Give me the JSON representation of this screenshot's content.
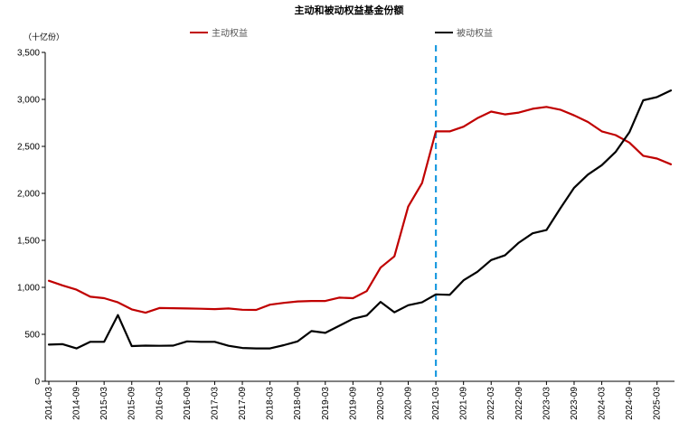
{
  "chart_data": {
    "type": "line",
    "title": "主动和被动权益基金份额",
    "ylabel": "（十亿份）",
    "ylim": [
      0,
      3500
    ],
    "yticks": [
      "0",
      "500",
      "1,000",
      "1,500",
      "2,000",
      "2,500",
      "3,000",
      "3,500"
    ],
    "ytick_values": [
      0,
      500,
      1000,
      1500,
      2000,
      2500,
      3000,
      3500
    ],
    "xtick_labels": [
      "2014-03",
      "2014-09",
      "2015-03",
      "2015-09",
      "2016-03",
      "2016-09",
      "2017-03",
      "2017-09",
      "2018-03",
      "2018-09",
      "2019-03",
      "2019-09",
      "2020-03",
      "2020-09",
      "2021-03",
      "2021-09",
      "2022-03",
      "2022-09",
      "2023-03",
      "2023-09",
      "2024-03",
      "2024-09",
      "2025-03"
    ],
    "x": [
      "2014-03",
      "2014-06",
      "2014-09",
      "2014-12",
      "2015-03",
      "2015-06",
      "2015-09",
      "2015-12",
      "2016-03",
      "2016-06",
      "2016-09",
      "2016-12",
      "2017-03",
      "2017-06",
      "2017-09",
      "2017-12",
      "2018-03",
      "2018-06",
      "2018-09",
      "2018-12",
      "2019-03",
      "2019-06",
      "2019-09",
      "2019-12",
      "2020-03",
      "2020-06",
      "2020-09",
      "2020-12",
      "2021-03",
      "2021-06",
      "2021-09",
      "2021-12",
      "2022-03",
      "2022-06",
      "2022-09",
      "2022-12",
      "2023-03",
      "2023-06",
      "2023-09",
      "2023-12",
      "2024-03",
      "2024-06",
      "2024-09",
      "2024-12",
      "2025-03",
      "2025-06"
    ],
    "series": [
      {
        "name": "主动权益",
        "color": "#C00000",
        "values": [
          1070,
          1020,
          975,
          900,
          885,
          840,
          765,
          730,
          780,
          778,
          775,
          772,
          768,
          775,
          762,
          760,
          815,
          835,
          850,
          855,
          855,
          890,
          885,
          960,
          1210,
          1330,
          1860,
          2110,
          2660,
          2660,
          2710,
          2800,
          2870,
          2840,
          2860,
          2900,
          2920,
          2890,
          2830,
          2760,
          2660,
          2620,
          2540,
          2400,
          2370,
          2310
        ]
      },
      {
        "name": "被动权益",
        "color": "#000000",
        "values": [
          390,
          395,
          350,
          420,
          420,
          705,
          375,
          380,
          378,
          380,
          425,
          420,
          420,
          378,
          355,
          350,
          350,
          385,
          425,
          535,
          515,
          590,
          665,
          700,
          845,
          735,
          810,
          840,
          925,
          920,
          1075,
          1165,
          1290,
          1340,
          1475,
          1575,
          1610,
          1840,
          2060,
          2200,
          2300,
          2440,
          2650,
          2990,
          3025,
          3095
        ]
      }
    ],
    "vline": {
      "x": "2021-03",
      "color": "#1E9BE0",
      "style": "dashed"
    },
    "legend_position": "top",
    "grid": false
  }
}
